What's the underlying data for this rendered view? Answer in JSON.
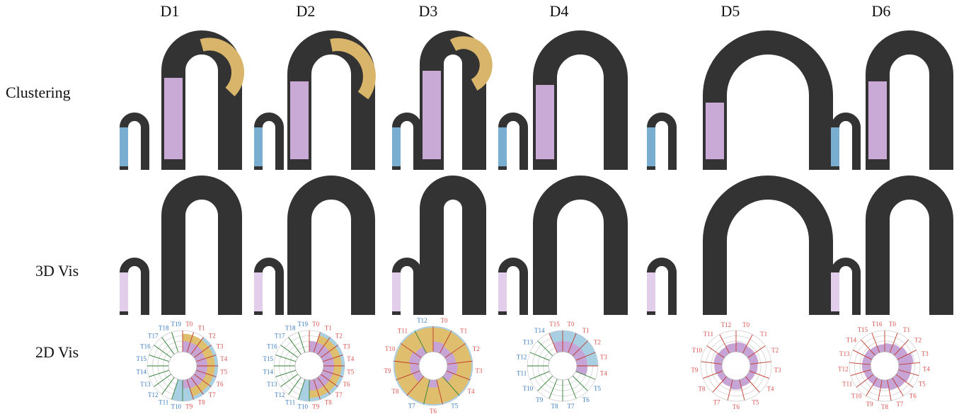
{
  "columns": [
    "D1",
    "D2",
    "D3",
    "D4",
    "D5",
    "D6"
  ],
  "rows": [
    "Clustering",
    "3D Vis",
    "2D Vis"
  ],
  "polar_charts": [
    {
      "labels": [
        "T0",
        "T1",
        "T2",
        "T3",
        "T4",
        "T5",
        "T6",
        "T7",
        "T8",
        "T9",
        "T10",
        "T11",
        "T12",
        "T13",
        "T14",
        "T15",
        "T16",
        "T17",
        "T18",
        "T19"
      ],
      "blue": [
        0,
        0,
        1,
        1,
        1,
        1,
        1,
        1,
        1,
        1,
        1,
        0,
        0,
        0,
        0,
        0,
        0,
        0,
        0,
        0
      ],
      "yellow": [
        0.85,
        0.85,
        0.85,
        0.85,
        0.85,
        0.85,
        0.85,
        0.85,
        0.85,
        0,
        0,
        0,
        0,
        0,
        0,
        0,
        0,
        0,
        0,
        0
      ],
      "purple": [
        0.5,
        0.5,
        0.5,
        0.45,
        0.5,
        0.5,
        0.5,
        0.5,
        0.45,
        0.4,
        0,
        0,
        0,
        0,
        0,
        0,
        0,
        0,
        0,
        0
      ]
    },
    {
      "labels": [
        "T0",
        "T1",
        "T2",
        "T3",
        "T4",
        "T5",
        "T6",
        "T7",
        "T8",
        "T9",
        "T10",
        "T11",
        "T12",
        "T13",
        "T14",
        "T15",
        "T16",
        "T17",
        "T18",
        "T19"
      ],
      "blue": [
        0,
        1,
        1,
        1,
        1,
        1,
        1,
        1,
        1,
        1,
        1,
        0,
        0,
        0,
        0,
        0,
        0,
        0,
        0,
        0
      ],
      "yellow": [
        0,
        0.85,
        0.85,
        0.85,
        0.85,
        0.85,
        0.85,
        0.85,
        0.85,
        0.85,
        0,
        0,
        0,
        0,
        0,
        0,
        0,
        0,
        0,
        0
      ],
      "purple": [
        0.5,
        0.5,
        0.5,
        0.5,
        0.5,
        0.5,
        0.5,
        0.5,
        0.5,
        0.5,
        0,
        0,
        0,
        0,
        0,
        0,
        0,
        0,
        0,
        0
      ]
    },
    {
      "labels": [
        "T0",
        "T1",
        "T2",
        "T3",
        "T4",
        "T5",
        "T6",
        "T7",
        "T8",
        "T9",
        "T10",
        "T11",
        "T12"
      ],
      "blue": [
        1,
        1,
        1,
        1,
        1,
        1,
        1,
        1,
        1,
        1,
        1,
        1,
        1
      ],
      "yellow": [
        0.95,
        0.95,
        0.95,
        0.95,
        0.95,
        0.95,
        0.95,
        0.95,
        0.95,
        0.95,
        0.95,
        0.95,
        0.95
      ],
      "purple": [
        0.4,
        0.3,
        0.35,
        0.4,
        0.3,
        0,
        0.3,
        0,
        0.3,
        0.35,
        0.4,
        0.3,
        0
      ]
    },
    {
      "labels": [
        "T0",
        "T1",
        "T2",
        "T3",
        "T4",
        "T5",
        "T6",
        "T7",
        "T8",
        "T9",
        "T10",
        "T11",
        "T12",
        "T13",
        "T14",
        "T15"
      ],
      "blue": [
        1,
        1,
        1,
        1,
        0,
        0,
        0,
        0,
        0,
        0,
        0,
        0,
        0,
        0,
        0,
        1
      ],
      "yellow": [
        0,
        0,
        0,
        0,
        0,
        0,
        0,
        0,
        0,
        0,
        0,
        0,
        0,
        0,
        0,
        0
      ],
      "purple": [
        0.5,
        0.5,
        0.5,
        0.5,
        0.5,
        0,
        0,
        0,
        0,
        0,
        0,
        0,
        0,
        0,
        0,
        0.5
      ]
    },
    {
      "labels": [
        "T0",
        "T1",
        "T2",
        "T3",
        "T4",
        "T5",
        "T6",
        "T7",
        "T8",
        "T9",
        "T10",
        "T11",
        "T12"
      ],
      "blue": [
        0,
        0,
        0,
        0,
        0,
        0,
        0,
        0,
        0,
        0,
        0,
        0,
        0
      ],
      "yellow": [
        0,
        0,
        0,
        0,
        0,
        0,
        0,
        0,
        0,
        0,
        0,
        0,
        0
      ],
      "purple": [
        0.45,
        0.4,
        0.4,
        0.35,
        0.3,
        0.35,
        0.45,
        0.35,
        0.3,
        0.35,
        0.4,
        0.35,
        0.4
      ]
    },
    {
      "labels": [
        "T0",
        "T1",
        "T2",
        "T3",
        "T4",
        "T5",
        "T6",
        "T7",
        "T8",
        "T9",
        "T10",
        "T11",
        "T12",
        "T13",
        "T14",
        "T15",
        "T16"
      ],
      "blue": [
        0,
        0,
        0,
        0,
        0,
        0,
        0,
        0,
        0,
        0,
        0,
        0,
        0,
        0,
        0,
        0,
        0
      ],
      "yellow": [
        0,
        0,
        0,
        0,
        0,
        0,
        0,
        0,
        0,
        0,
        0,
        0,
        0,
        0,
        0,
        0,
        0
      ],
      "purple": [
        0.4,
        0.45,
        0.55,
        0.7,
        0.6,
        0.6,
        0.55,
        0.5,
        0.4,
        0.4,
        0.35,
        0.35,
        0.4,
        0.4,
        0.4,
        0.35,
        0.35
      ]
    }
  ]
}
